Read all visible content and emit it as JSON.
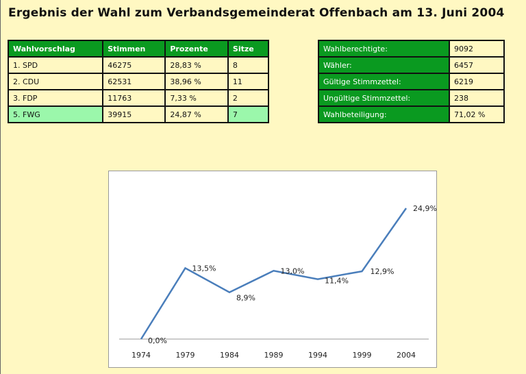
{
  "title": "Ergebnis der Wahl zum Verbandsgemeinderat Offenbach am 13. Juni 2004",
  "results": {
    "headers": [
      "Wahlvorschlag",
      "Stimmen",
      "Prozente",
      "Sitze"
    ],
    "rows": [
      [
        "1. SPD",
        "46275",
        "28,83 %",
        "8"
      ],
      [
        "2. CDU",
        "62531",
        "38,96 %",
        "11"
      ],
      [
        "3. FDP",
        "11763",
        "7,33 %",
        "2"
      ],
      [
        "5. FWG",
        "39915",
        "24,87 %",
        "7"
      ]
    ]
  },
  "stats": [
    [
      "Wahlberechtigte:",
      "9092"
    ],
    [
      "Wähler:",
      "6457"
    ],
    [
      "Gültige Stimmzettel:",
      "6219"
    ],
    [
      "Ungültige Stimmzettel:",
      "238"
    ],
    [
      "Wahlbeteiligung:",
      "71,02 %"
    ]
  ],
  "chart_data": {
    "type": "line",
    "categories": [
      "1974",
      "1979",
      "1984",
      "1989",
      "1994",
      "1999",
      "2004"
    ],
    "values": [
      0.0,
      13.5,
      8.9,
      13.0,
      11.4,
      12.9,
      24.9
    ],
    "labels": [
      "0,0%",
      "13,5%",
      "8,9%",
      "13,0%",
      "11,4%",
      "12,9%",
      "24,9%"
    ],
    "color": "#4a7ebb",
    "title": "",
    "xlabel": "",
    "ylabel": ""
  }
}
